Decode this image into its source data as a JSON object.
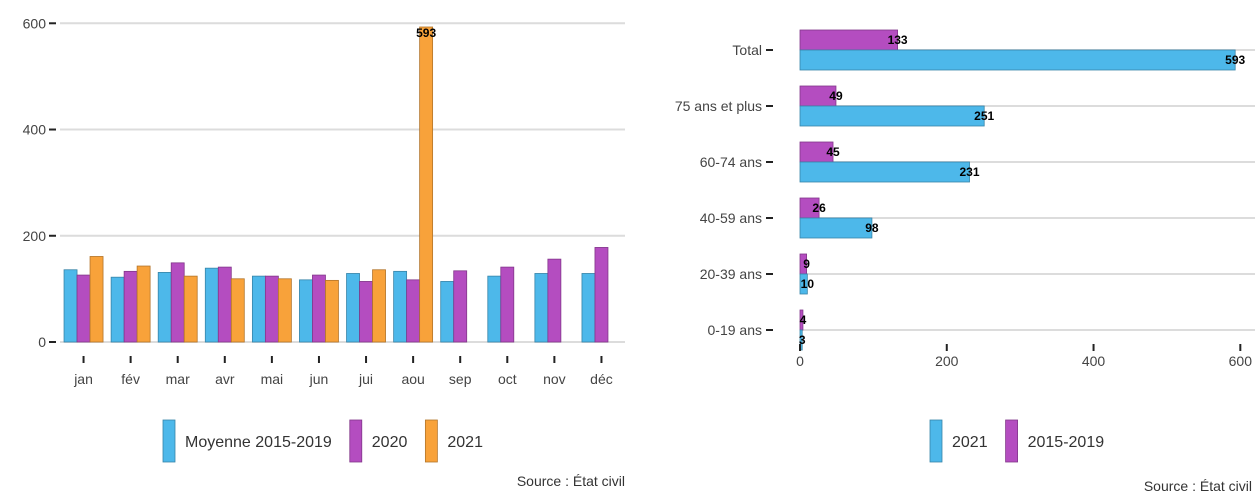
{
  "chart_data": [
    {
      "type": "bar",
      "orientation": "vertical",
      "categories": [
        "jan",
        "fév",
        "mar",
        "avr",
        "mai",
        "jun",
        "jui",
        "aou",
        "sep",
        "oct",
        "nov",
        "déc"
      ],
      "series": [
        {
          "name": "Moyenne 2015-2019",
          "color": "#4DB8EA",
          "values": [
            136,
            122,
            131,
            139,
            124,
            117,
            129,
            133,
            114,
            124,
            129,
            129
          ]
        },
        {
          "name": "2020",
          "color": "#B44DC0",
          "values": [
            126,
            133,
            149,
            141,
            124,
            126,
            114,
            117,
            134,
            141,
            156,
            178
          ]
        },
        {
          "name": "2021",
          "color": "#F8A23A",
          "values": [
            161,
            143,
            124,
            119,
            119,
            116,
            136,
            593,
            null,
            null,
            null,
            null
          ]
        }
      ],
      "data_labels": [
        {
          "series": "2021",
          "category": "aou",
          "text": "593"
        }
      ],
      "y_ticks": [
        "0",
        "200",
        "400",
        "600"
      ],
      "ylim": [
        0,
        625
      ],
      "grid": "horizontal",
      "legend_position": "bottom",
      "source": "Source : État civil"
    },
    {
      "type": "bar",
      "orientation": "horizontal",
      "categories": [
        "Total",
        "75 ans et plus",
        "60-74 ans",
        "40-59 ans",
        "20-39 ans",
        "0-19 ans"
      ],
      "series": [
        {
          "name": "2015-2019",
          "color": "#B44DC0",
          "values": [
            133,
            49,
            45,
            26,
            9,
            4
          ]
        },
        {
          "name": "2021",
          "color": "#4DB8EA",
          "values": [
            593,
            251,
            231,
            98,
            10,
            3
          ]
        }
      ],
      "x_ticks": [
        "0",
        "200",
        "400",
        "600"
      ],
      "xlim": [
        0,
        620
      ],
      "grid": "horizontal",
      "legend": [
        {
          "name": "2021",
          "color": "#4DB8EA"
        },
        {
          "name": "2015-2019",
          "color": "#B44DC0"
        }
      ],
      "legend_position": "bottom",
      "source": "Source : État civil"
    }
  ]
}
